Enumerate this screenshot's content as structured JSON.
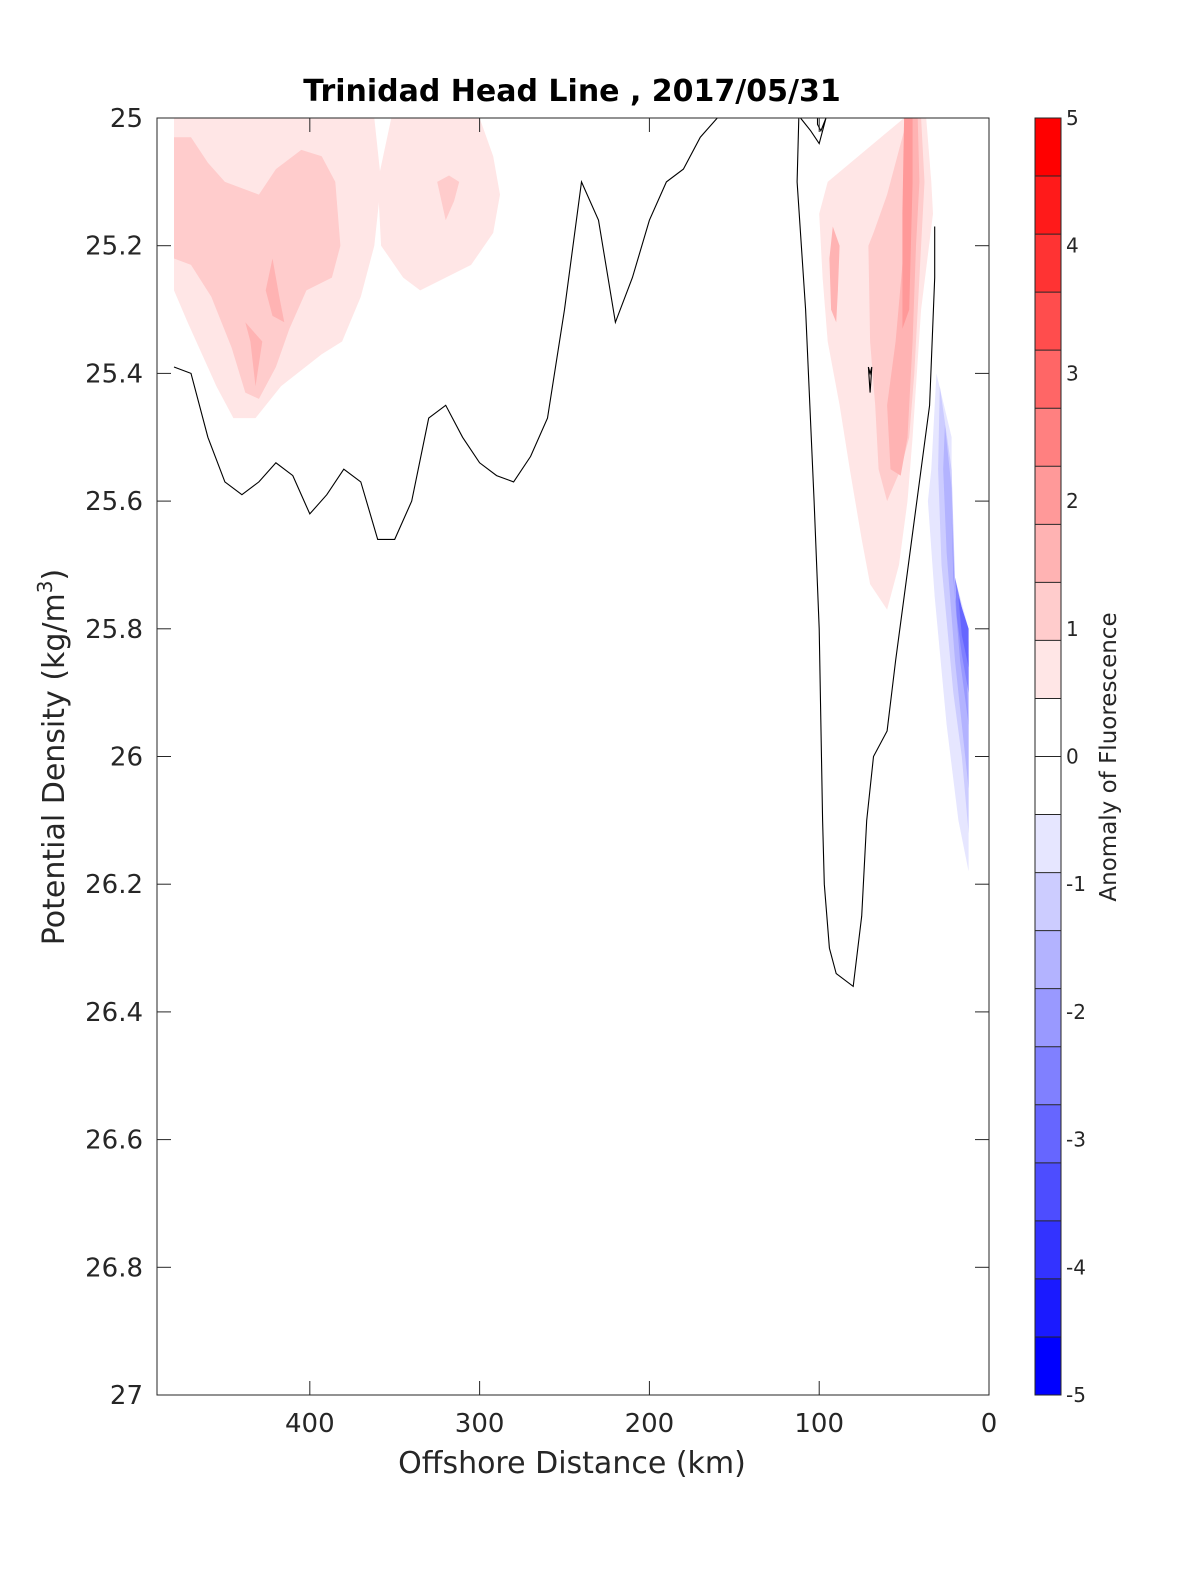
{
  "chart_data": {
    "type": "heatmap",
    "subtype": "filled-contour",
    "title": "Trinidad Head Line , 2017/05/31",
    "xlabel": "Offshore Distance (km)",
    "ylabel": "Potential Density (kg/m3)",
    "ylabel_parts": [
      "Potential Density (kg/m",
      "3",
      ")"
    ],
    "xlim": [
      490,
      0
    ],
    "ylim": [
      25,
      27
    ],
    "x_reversed": true,
    "y_reversed": true,
    "xticks": [
      400,
      300,
      200,
      100,
      0
    ],
    "xtick_labels": [
      "400",
      "300",
      "200",
      "100",
      "0"
    ],
    "yticks": [
      25,
      25.2,
      25.4,
      25.6,
      25.8,
      26,
      26.2,
      26.4,
      26.6,
      26.8,
      27
    ],
    "ytick_labels": [
      "25",
      "25.2",
      "25.4",
      "25.6",
      "25.8",
      "26",
      "26.2",
      "26.4",
      "26.6",
      "26.8",
      "27"
    ],
    "grid": false,
    "colorbar": {
      "label": "Anomaly of Fluorescence",
      "limits": [
        -5,
        5
      ],
      "step": 0.5,
      "ticks": [
        5,
        4,
        3,
        2,
        1,
        0,
        -1,
        -2,
        -3,
        -4,
        -5
      ],
      "tick_labels": [
        "5",
        "4",
        "3",
        "2",
        "1",
        "0",
        "-1",
        "-2",
        "-3",
        "-4",
        "-5"
      ],
      "colors_top_to_bottom": [
        "#ff0000",
        "#ff1a1a",
        "#ff3333",
        "#ff4d4d",
        "#ff6666",
        "#ff8080",
        "#ff9999",
        "#ffb3b3",
        "#ffcccc",
        "#ffe6e6",
        "#ffffff",
        "#ffffff",
        "#e6e6ff",
        "#ccccff",
        "#b3b3ff",
        "#9999ff",
        "#8080ff",
        "#6666ff",
        "#4d4dff",
        "#3333ff",
        "#1a1aff",
        "#0000ff"
      ]
    },
    "regions": [
      {
        "name": "offshore-positive-anomaly-1",
        "level": 0.5,
        "fill": "#ffe6e6",
        "points": [
          [
            480,
            25
          ],
          [
            362,
            25
          ],
          [
            358,
            25.1
          ],
          [
            362,
            25.2
          ],
          [
            370,
            25.28
          ],
          [
            381,
            25.35
          ],
          [
            393,
            25.37
          ],
          [
            417,
            25.42
          ],
          [
            432,
            25.47
          ],
          [
            445,
            25.47
          ],
          [
            455,
            25.42
          ],
          [
            472,
            25.32
          ],
          [
            480,
            25.27
          ]
        ]
      },
      {
        "name": "offshore-positive-anomaly-2",
        "level": 1.0,
        "fill": "#ffcccc",
        "points": [
          [
            480,
            25.03
          ],
          [
            470,
            25.03
          ],
          [
            460,
            25.07
          ],
          [
            450,
            25.1
          ],
          [
            430,
            25.12
          ],
          [
            420,
            25.08
          ],
          [
            405,
            25.05
          ],
          [
            393,
            25.06
          ],
          [
            385,
            25.1
          ],
          [
            382,
            25.2
          ],
          [
            387,
            25.25
          ],
          [
            402,
            25.27
          ],
          [
            412,
            25.33
          ],
          [
            420,
            25.39
          ],
          [
            430,
            25.44
          ],
          [
            438,
            25.43
          ],
          [
            446,
            25.36
          ],
          [
            458,
            25.28
          ],
          [
            470,
            25.23
          ],
          [
            480,
            25.22
          ]
        ]
      },
      {
        "name": "offshore-positive-anomaly-3",
        "level": 1.5,
        "fill": "#ffb3b3",
        "points": [
          [
            438,
            25.32
          ],
          [
            435,
            25.35
          ],
          [
            432,
            25.42
          ],
          [
            428,
            25.35
          ]
        ]
      },
      {
        "name": "offshore-positive-anomaly-4",
        "level": 1.5,
        "fill": "#ffb3b3",
        "points": [
          [
            422,
            25.22
          ],
          [
            418,
            25.28
          ],
          [
            415,
            25.32
          ],
          [
            422,
            25.31
          ],
          [
            426,
            25.27
          ]
        ]
      },
      {
        "name": "mid-positive-anomaly-1",
        "level": 0.5,
        "fill": "#ffe6e6",
        "points": [
          [
            352,
            25
          ],
          [
            320,
            25
          ],
          [
            300,
            25
          ],
          [
            292,
            25.06
          ],
          [
            288,
            25.12
          ],
          [
            292,
            25.18
          ],
          [
            305,
            25.23
          ],
          [
            320,
            25.25
          ],
          [
            335,
            25.27
          ],
          [
            345,
            25.25
          ],
          [
            358,
            25.2
          ],
          [
            360,
            25.1
          ]
        ]
      },
      {
        "name": "mid-positive-anomaly-2",
        "level": 1.0,
        "fill": "#ffcccc",
        "points": [
          [
            325,
            25.1
          ],
          [
            318,
            25.09
          ],
          [
            312,
            25.1
          ],
          [
            315,
            25.13
          ],
          [
            320,
            25.16
          ]
        ]
      },
      {
        "name": "nearshore-positive-anomaly-1",
        "level": 0.5,
        "fill": "#ffe6e6",
        "points": [
          [
            50,
            25
          ],
          [
            37,
            25
          ],
          [
            34,
            25.1
          ],
          [
            33,
            25.15
          ],
          [
            40,
            25.3
          ],
          [
            45,
            25.5
          ],
          [
            48,
            25.6
          ],
          [
            53,
            25.7
          ],
          [
            60,
            25.77
          ],
          [
            70,
            25.73
          ],
          [
            75,
            25.66
          ],
          [
            82,
            25.55
          ],
          [
            88,
            25.45
          ],
          [
            95,
            25.35
          ],
          [
            98,
            25.25
          ],
          [
            100,
            25.15
          ],
          [
            95,
            25.1
          ]
        ]
      },
      {
        "name": "nearshore-positive-anomaly-2",
        "level": 1.0,
        "fill": "#ffcccc",
        "points": [
          [
            48,
            25
          ],
          [
            40,
            25
          ],
          [
            38,
            25.1
          ],
          [
            40,
            25.2
          ],
          [
            44,
            25.4
          ],
          [
            47,
            25.5
          ],
          [
            52,
            25.55
          ],
          [
            60,
            25.6
          ],
          [
            65,
            25.55
          ],
          [
            67,
            25.45
          ],
          [
            70,
            25.35
          ],
          [
            71,
            25.2
          ],
          [
            68,
            25.18
          ],
          [
            60,
            25.12
          ]
        ]
      },
      {
        "name": "nearshore-positive-anomaly-3",
        "level": 1.5,
        "fill": "#ffb3b3",
        "points": [
          [
            47,
            25
          ],
          [
            42,
            25
          ],
          [
            41,
            25.1
          ],
          [
            43,
            25.2
          ],
          [
            45,
            25.35
          ],
          [
            48,
            25.5
          ],
          [
            52,
            25.56
          ],
          [
            58,
            25.55
          ],
          [
            60,
            25.45
          ],
          [
            55,
            25.35
          ],
          [
            50,
            25.2
          ],
          [
            48,
            25.1
          ]
        ]
      },
      {
        "name": "nearshore-positive-anomaly-4",
        "level": 1.5,
        "fill": "#ffb3b3",
        "points": [
          [
            92,
            25.17
          ],
          [
            88,
            25.2
          ],
          [
            89,
            25.27
          ],
          [
            90,
            25.32
          ],
          [
            93,
            25.3
          ],
          [
            94,
            25.22
          ]
        ]
      },
      {
        "name": "nearshore-positive-anomaly-5",
        "level": 2.0,
        "fill": "#ff9999",
        "points": [
          [
            50,
            25
          ],
          [
            45,
            25
          ],
          [
            45,
            25.1
          ],
          [
            47,
            25.3
          ],
          [
            51,
            25.33
          ],
          [
            51,
            25.15
          ]
        ]
      },
      {
        "name": "nearshore-negative-anomaly-1",
        "level": -0.5,
        "fill": "#e6e6ff",
        "points": [
          [
            31,
            25.4
          ],
          [
            22,
            25.5
          ],
          [
            22,
            25.7
          ],
          [
            12,
            25.8
          ],
          [
            12,
            26.18
          ],
          [
            18,
            26.1
          ],
          [
            25,
            25.95
          ],
          [
            32,
            25.75
          ],
          [
            36,
            25.6
          ],
          [
            34,
            25.55
          ]
        ]
      },
      {
        "name": "nearshore-negative-anomaly-2",
        "level": -1.0,
        "fill": "#ccccff",
        "points": [
          [
            29,
            25.42
          ],
          [
            22,
            25.55
          ],
          [
            20,
            25.72
          ],
          [
            12,
            25.82
          ],
          [
            12,
            26.12
          ],
          [
            16,
            26.0
          ],
          [
            21,
            25.9
          ],
          [
            28,
            25.7
          ],
          [
            30,
            25.55
          ]
        ]
      },
      {
        "name": "nearshore-negative-anomaly-3",
        "level": -1.5,
        "fill": "#b3b3ff",
        "points": [
          [
            26,
            25.48
          ],
          [
            22,
            25.58
          ],
          [
            20,
            25.74
          ],
          [
            12,
            25.84
          ],
          [
            12,
            26.05
          ],
          [
            16,
            25.95
          ],
          [
            20,
            25.85
          ],
          [
            25,
            25.68
          ],
          [
            27,
            25.55
          ]
        ]
      },
      {
        "name": "nearshore-negative-anomaly-4",
        "level": -2.0,
        "fill": "#9999ff",
        "points": [
          [
            22,
            25.62
          ],
          [
            20,
            25.75
          ],
          [
            14,
            25.82
          ],
          [
            12,
            25.95
          ],
          [
            17,
            25.85
          ],
          [
            21,
            25.72
          ]
        ]
      },
      {
        "name": "nearshore-negative-anomaly-5",
        "level": -2.5,
        "fill": "#8080ff",
        "points": [
          [
            20,
            25.72
          ],
          [
            14,
            25.79
          ],
          [
            12,
            25.85
          ],
          [
            12,
            25.9
          ],
          [
            16,
            25.84
          ],
          [
            19,
            25.78
          ]
        ]
      },
      {
        "name": "nearshore-negative-anomaly-6",
        "level": -3.0,
        "fill": "#6666ff",
        "points": [
          [
            18,
            25.75
          ],
          [
            12,
            25.8
          ],
          [
            12,
            25.86
          ],
          [
            16,
            25.81
          ]
        ]
      }
    ],
    "contour_lines": [
      {
        "name": "zero-contour-offshore",
        "level": 0,
        "points": [
          [
            480,
            25.39
          ],
          [
            470,
            25.4
          ],
          [
            460,
            25.5
          ],
          [
            450,
            25.57
          ],
          [
            440,
            25.59
          ],
          [
            430,
            25.57
          ],
          [
            420,
            25.54
          ],
          [
            410,
            25.56
          ],
          [
            400,
            25.62
          ],
          [
            390,
            25.59
          ],
          [
            380,
            25.55
          ],
          [
            370,
            25.57
          ],
          [
            360,
            25.66
          ],
          [
            350,
            25.66
          ],
          [
            340,
            25.6
          ],
          [
            330,
            25.47
          ],
          [
            320,
            25.45
          ],
          [
            310,
            25.5
          ],
          [
            300,
            25.54
          ],
          [
            290,
            25.56
          ],
          [
            280,
            25.57
          ],
          [
            270,
            25.53
          ],
          [
            260,
            25.47
          ],
          [
            250,
            25.3
          ],
          [
            240,
            25.1
          ],
          [
            230,
            25.16
          ],
          [
            220,
            25.32
          ],
          [
            210,
            25.25
          ],
          [
            200,
            25.16
          ],
          [
            190,
            25.1
          ],
          [
            180,
            25.08
          ],
          [
            170,
            25.03
          ],
          [
            160,
            25
          ]
        ]
      },
      {
        "name": "zero-contour-nearshore",
        "level": 0,
        "points": [
          [
            112,
            25
          ],
          [
            113,
            25.1
          ],
          [
            108,
            25.3
          ],
          [
            103,
            25.6
          ],
          [
            100,
            25.8
          ],
          [
            98,
            26.1
          ],
          [
            97,
            26.2
          ],
          [
            94,
            26.3
          ],
          [
            90,
            26.34
          ],
          [
            80,
            26.36
          ],
          [
            75,
            26.25
          ],
          [
            72,
            26.1
          ],
          [
            68,
            26
          ],
          [
            60,
            25.96
          ],
          [
            55,
            25.85
          ],
          [
            50,
            25.75
          ],
          [
            45,
            25.65
          ],
          [
            40,
            25.55
          ],
          [
            35,
            25.45
          ],
          [
            32,
            25.25
          ],
          [
            32,
            25.17
          ]
        ]
      },
      {
        "name": "zero-contour-top-notch",
        "level": 0,
        "points": [
          [
            111,
            25
          ],
          [
            105,
            25.02
          ],
          [
            100,
            25.04
          ],
          [
            96,
            25
          ],
          [
            99,
            25.02
          ],
          [
            101,
            25.01
          ],
          [
            101,
            25
          ]
        ]
      },
      {
        "name": "zero-contour-small-loop",
        "level": 0,
        "points": [
          [
            71,
            25.39
          ],
          [
            70,
            25.43
          ],
          [
            69,
            25.39
          ],
          [
            70,
            25.4
          ],
          [
            71,
            25.39
          ]
        ]
      }
    ]
  }
}
